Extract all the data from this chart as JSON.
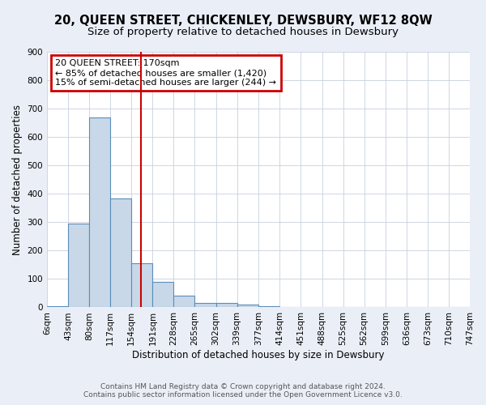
{
  "title": "20, QUEEN STREET, CHICKENLEY, DEWSBURY, WF12 8QW",
  "subtitle": "Size of property relative to detached houses in Dewsbury",
  "xlabel": "Distribution of detached houses by size in Dewsbury",
  "ylabel": "Number of detached properties",
  "bin_edges": [
    6,
    43,
    80,
    117,
    154,
    191,
    228,
    265,
    302,
    339,
    377,
    414,
    451,
    488,
    525,
    562,
    599,
    636,
    673,
    710,
    747
  ],
  "bar_heights": [
    5,
    295,
    670,
    385,
    155,
    90,
    40,
    15,
    15,
    10,
    5,
    0,
    0,
    0,
    0,
    0,
    0,
    0,
    0,
    0
  ],
  "bar_color": "#c8d8e8",
  "bar_edge_color": "#5b8db8",
  "bar_edge_width": 0.8,
  "ref_line_x": 170,
  "ref_line_color": "#cc0000",
  "annotation_text": "20 QUEEN STREET: 170sqm\n← 85% of detached houses are smaller (1,420)\n15% of semi-detached houses are larger (244) →",
  "annotation_box_color": "white",
  "annotation_box_edge_color": "#cc0000",
  "ylim": [
    0,
    900
  ],
  "yticks": [
    0,
    100,
    200,
    300,
    400,
    500,
    600,
    700,
    800,
    900
  ],
  "bg_color": "#eaeff7",
  "plot_bg_color": "white",
  "grid_color": "#c8d0de",
  "footer_text": "Contains HM Land Registry data © Crown copyright and database right 2024.\nContains public sector information licensed under the Open Government Licence v3.0.",
  "title_fontsize": 10.5,
  "subtitle_fontsize": 9.5,
  "axis_label_fontsize": 8.5,
  "tick_fontsize": 7.5,
  "annotation_fontsize": 8,
  "footer_fontsize": 6.5
}
